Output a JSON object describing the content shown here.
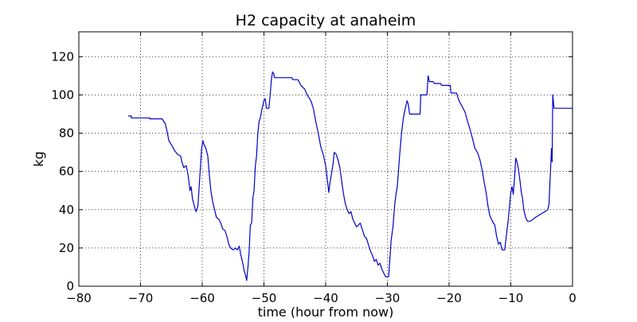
{
  "chart_data": {
    "type": "line",
    "title": "H2 capacity at anaheim",
    "xlabel": "time (hour from now)",
    "ylabel": "kg",
    "xlim": [
      -80,
      0
    ],
    "ylim": [
      0,
      133
    ],
    "xticks": [
      -80,
      -70,
      -60,
      -50,
      -40,
      -30,
      -20,
      -10,
      0
    ],
    "yticks": [
      0,
      20,
      40,
      60,
      80,
      100,
      120
    ],
    "grid": true,
    "line_color": "#0000cc",
    "series": [
      {
        "points": [
          [
            -72,
            89
          ],
          [
            -71.5,
            89
          ],
          [
            -71.5,
            88
          ],
          [
            -68.5,
            88
          ],
          [
            -68.5,
            87.5
          ],
          [
            -66.5,
            87.5
          ],
          [
            -66,
            85
          ],
          [
            -65.7,
            81
          ],
          [
            -65.4,
            76
          ],
          [
            -65,
            74
          ],
          [
            -64.5,
            71
          ],
          [
            -64,
            69
          ],
          [
            -63.5,
            68
          ],
          [
            -63.3,
            65
          ],
          [
            -63,
            62
          ],
          [
            -62.6,
            63
          ],
          [
            -62.4,
            60
          ],
          [
            -62.2,
            56
          ],
          [
            -62,
            50
          ],
          [
            -61.8,
            52
          ],
          [
            -61.6,
            46
          ],
          [
            -61.3,
            42
          ],
          [
            -61,
            39
          ],
          [
            -60.7,
            42
          ],
          [
            -60.5,
            52
          ],
          [
            -60.3,
            62
          ],
          [
            -60.1,
            72
          ],
          [
            -59.9,
            76
          ],
          [
            -59.7,
            74
          ],
          [
            -59.4,
            72
          ],
          [
            -59.1,
            68
          ],
          [
            -58.9,
            60
          ],
          [
            -58.6,
            50
          ],
          [
            -58.3,
            44
          ],
          [
            -58,
            40
          ],
          [
            -57.7,
            36
          ],
          [
            -57.3,
            35
          ],
          [
            -57,
            33
          ],
          [
            -56.7,
            30
          ],
          [
            -56.3,
            29
          ],
          [
            -56,
            26
          ],
          [
            -55.7,
            22
          ],
          [
            -55.4,
            20
          ],
          [
            -55,
            19
          ],
          [
            -54.6,
            20
          ],
          [
            -54.3,
            19
          ],
          [
            -54,
            21
          ],
          [
            -53.8,
            17
          ],
          [
            -53.5,
            13
          ],
          [
            -53.2,
            8
          ],
          [
            -53,
            6
          ],
          [
            -52.8,
            3
          ],
          [
            -52.6,
            10
          ],
          [
            -52.4,
            18
          ],
          [
            -52.2,
            32
          ],
          [
            -52,
            33
          ],
          [
            -51.8,
            46
          ],
          [
            -51.6,
            50
          ],
          [
            -51.4,
            63
          ],
          [
            -51.2,
            68
          ],
          [
            -51,
            80
          ],
          [
            -50.8,
            86
          ],
          [
            -50.6,
            88
          ],
          [
            -50.3,
            93
          ],
          [
            -50,
            97
          ],
          [
            -49.8,
            98
          ],
          [
            -49.6,
            93
          ],
          [
            -49.2,
            93
          ],
          [
            -49,
            100
          ],
          [
            -48.8,
            108
          ],
          [
            -48.6,
            112
          ],
          [
            -48.4,
            111
          ],
          [
            -48.3,
            109
          ],
          [
            -45.5,
            109
          ],
          [
            -45.3,
            108
          ],
          [
            -44.5,
            108
          ],
          [
            -44,
            105
          ],
          [
            -43.4,
            103
          ],
          [
            -43,
            100
          ],
          [
            -42.4,
            97
          ],
          [
            -42,
            93
          ],
          [
            -41.6,
            86
          ],
          [
            -41.2,
            80
          ],
          [
            -40.8,
            73
          ],
          [
            -40.4,
            69
          ],
          [
            -40,
            63
          ],
          [
            -39.7,
            55
          ],
          [
            -39.5,
            49
          ],
          [
            -39.3,
            54
          ],
          [
            -39,
            60
          ],
          [
            -38.8,
            64
          ],
          [
            -38.6,
            70
          ],
          [
            -38.3,
            69
          ],
          [
            -38,
            66
          ],
          [
            -37.7,
            62
          ],
          [
            -37.4,
            55
          ],
          [
            -37.1,
            48
          ],
          [
            -36.8,
            43
          ],
          [
            -36.5,
            40
          ],
          [
            -36.2,
            38
          ],
          [
            -35.9,
            39
          ],
          [
            -35.6,
            35
          ],
          [
            -35.3,
            33
          ],
          [
            -35,
            31
          ],
          [
            -34.7,
            32
          ],
          [
            -34.4,
            33
          ],
          [
            -34.2,
            31
          ],
          [
            -34,
            29
          ],
          [
            -33.7,
            26
          ],
          [
            -33.4,
            25
          ],
          [
            -33,
            21
          ],
          [
            -32.7,
            18
          ],
          [
            -32.4,
            16
          ],
          [
            -32.1,
            13
          ],
          [
            -31.8,
            14
          ],
          [
            -31.5,
            11
          ],
          [
            -31.2,
            12
          ],
          [
            -30.9,
            9
          ],
          [
            -30.6,
            7
          ],
          [
            -30.3,
            5
          ],
          [
            -29.8,
            5
          ],
          [
            -29.6,
            14
          ],
          [
            -29.4,
            24
          ],
          [
            -29.1,
            31
          ],
          [
            -28.8,
            43
          ],
          [
            -28.6,
            48
          ],
          [
            -28.4,
            52
          ],
          [
            -28.2,
            60
          ],
          [
            -28,
            69
          ],
          [
            -27.7,
            80
          ],
          [
            -27.4,
            88
          ],
          [
            -27.1,
            93
          ],
          [
            -26.8,
            97
          ],
          [
            -26.6,
            95
          ],
          [
            -26.4,
            90
          ],
          [
            -24.7,
            90
          ],
          [
            -24.6,
            100
          ],
          [
            -23.6,
            100
          ],
          [
            -23.4,
            110
          ],
          [
            -23.2,
            107
          ],
          [
            -22.6,
            107
          ],
          [
            -22.4,
            106
          ],
          [
            -21.4,
            106
          ],
          [
            -21.2,
            105
          ],
          [
            -19.8,
            105
          ],
          [
            -19.7,
            101
          ],
          [
            -18.8,
            101
          ],
          [
            -18.4,
            97
          ],
          [
            -17.9,
            94
          ],
          [
            -17.4,
            91
          ],
          [
            -17,
            86
          ],
          [
            -16.6,
            82
          ],
          [
            -16.2,
            77
          ],
          [
            -15.8,
            72
          ],
          [
            -15.4,
            70
          ],
          [
            -15,
            66
          ],
          [
            -14.6,
            60
          ],
          [
            -14.3,
            54
          ],
          [
            -14,
            49
          ],
          [
            -13.7,
            42
          ],
          [
            -13.4,
            37
          ],
          [
            -13,
            34
          ],
          [
            -12.6,
            32
          ],
          [
            -12.3,
            26
          ],
          [
            -12,
            22
          ],
          [
            -11.7,
            23
          ],
          [
            -11.4,
            19
          ],
          [
            -11,
            19
          ],
          [
            -10.7,
            27
          ],
          [
            -10.4,
            35
          ],
          [
            -10.2,
            42
          ],
          [
            -10,
            49
          ],
          [
            -9.8,
            52
          ],
          [
            -9.6,
            48
          ],
          [
            -9.4,
            56
          ],
          [
            -9.2,
            67
          ],
          [
            -9,
            65
          ],
          [
            -8.8,
            62
          ],
          [
            -8.5,
            55
          ],
          [
            -8.3,
            49
          ],
          [
            -8.1,
            46
          ],
          [
            -7.9,
            40
          ],
          [
            -7.6,
            36
          ],
          [
            -7.3,
            34
          ],
          [
            -6.8,
            34
          ],
          [
            -6.4,
            35
          ],
          [
            -6,
            36
          ],
          [
            -5.5,
            37
          ],
          [
            -5,
            38
          ],
          [
            -4.5,
            39
          ],
          [
            -4,
            40
          ],
          [
            -3.8,
            43
          ],
          [
            -3.6,
            58
          ],
          [
            -3.4,
            72
          ],
          [
            -3.3,
            65
          ],
          [
            -3.2,
            100
          ],
          [
            -3,
            93
          ],
          [
            0,
            93
          ]
        ]
      }
    ]
  }
}
